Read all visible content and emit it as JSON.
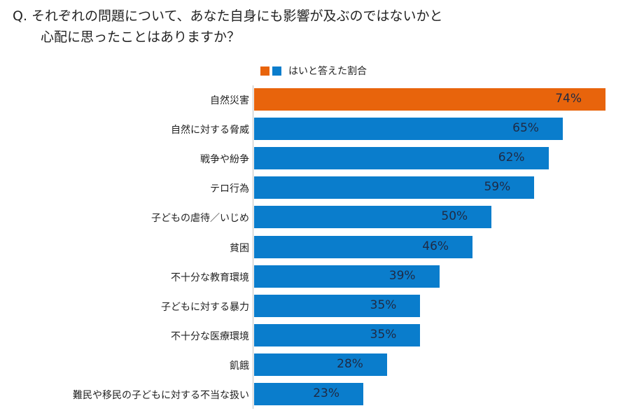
{
  "title": {
    "line1": "Q. それぞれの問題について、あなた自身にも影響が及ぶのではないかと",
    "line2": "心配に思ったことはありますか？"
  },
  "legend": {
    "label": "はいと答えた割合",
    "colors": [
      "#e8640c",
      "#0a7dcc"
    ]
  },
  "chart_data": {
    "type": "bar",
    "orientation": "horizontal",
    "title": "Q. それぞれの問題について、あなた自身にも影響が及ぶのではないかと心配に思ったことはありますか？",
    "xlabel": "",
    "ylabel": "",
    "xlim": [
      0,
      74
    ],
    "grid": false,
    "legend_position": "top",
    "series": [
      {
        "name": "はいと答えた割合",
        "values": [
          74,
          65,
          62,
          59,
          50,
          46,
          39,
          35,
          35,
          28,
          23
        ]
      }
    ],
    "categories": [
      "自然災害",
      "自然に対する脅威",
      "戦争や紛争",
      "テロ行為",
      "子どもの虐待／いじめ",
      "貧困",
      "不十分な教育環境",
      "子どもに対する暴力",
      "不十分な医療環境",
      "飢餓",
      "難民や移民の子どもに対する不当な扱い"
    ],
    "data_labels": [
      "74%",
      "65%",
      "62%",
      "59%",
      "50%",
      "46%",
      "39%",
      "35%",
      "35%",
      "28%",
      "23%"
    ],
    "highlight_color": "#e8640c",
    "bar_color": "#0a7dcc",
    "highlight_index": 0
  }
}
